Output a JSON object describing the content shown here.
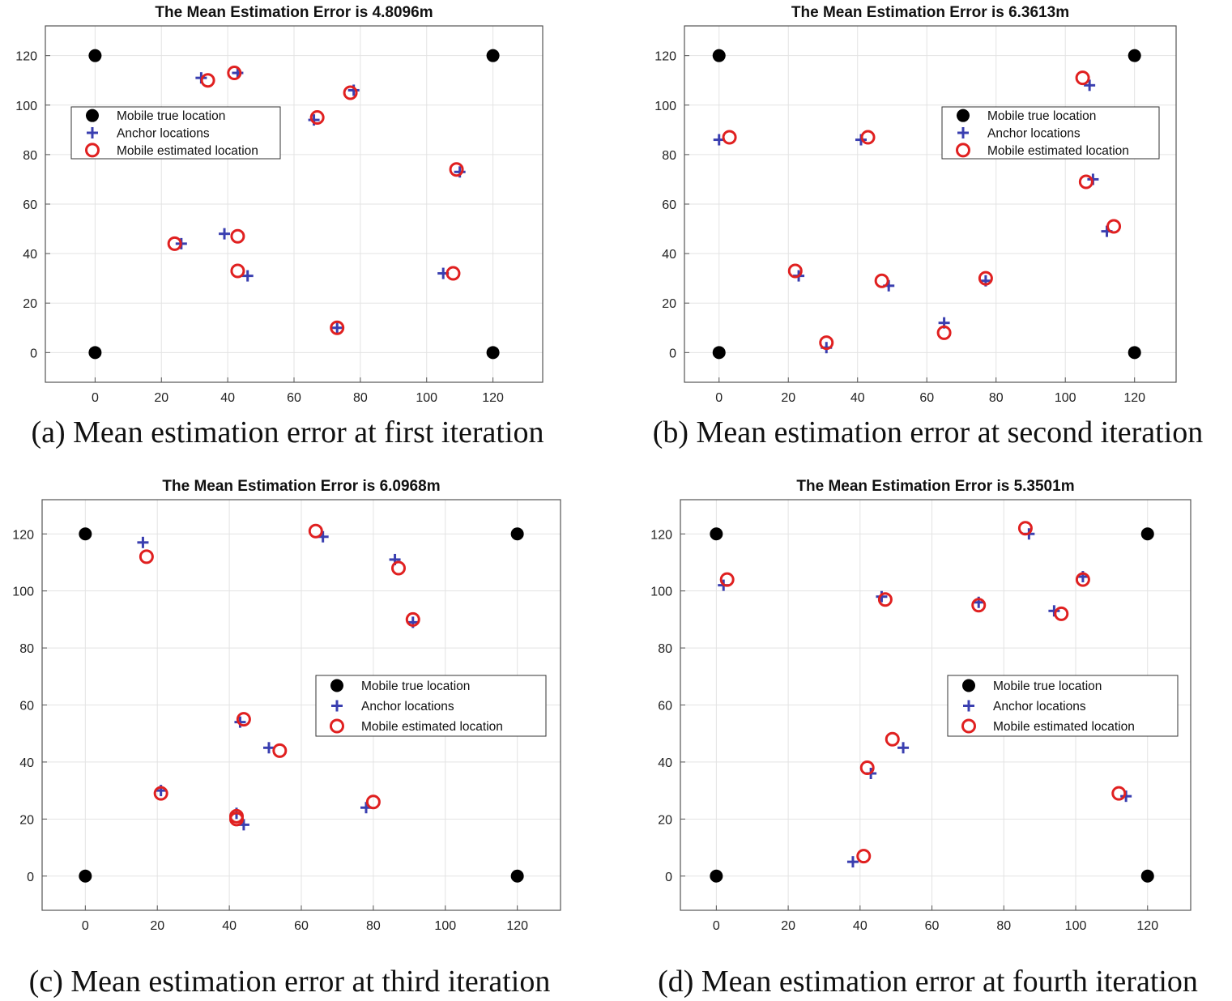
{
  "colors": {
    "mobile": "#000000",
    "anchor": "#3a3fb0",
    "estimated": "#e02020",
    "grid": "#e3e3e3",
    "axis": "#555555"
  },
  "legend_labels": {
    "mobile": "Mobile true location",
    "anchor": "Anchor locations",
    "estimated": "Mobile estimated location"
  },
  "chart_data": [
    {
      "type": "scatter",
      "title": "The Mean Estimation Error is 4.8096m",
      "caption": "(a) Mean estimation error at first iteration",
      "xlim": [
        -15,
        135
      ],
      "ylim": [
        -12,
        132
      ],
      "xticks": [
        0,
        20,
        40,
        60,
        80,
        100,
        120
      ],
      "yticks": [
        0,
        20,
        40,
        60,
        80,
        100,
        120
      ],
      "legend_position": "upper-left",
      "mobile_true": [
        [
          0,
          120
        ],
        [
          120,
          120
        ],
        [
          0,
          0
        ],
        [
          120,
          0
        ]
      ],
      "anchors": [
        [
          32,
          111
        ],
        [
          43,
          113
        ],
        [
          78,
          106
        ],
        [
          66,
          94
        ],
        [
          110,
          73
        ],
        [
          26,
          44
        ],
        [
          39,
          48
        ],
        [
          46,
          31
        ],
        [
          105,
          32
        ],
        [
          73,
          10
        ]
      ],
      "estimated": [
        [
          34,
          110
        ],
        [
          42,
          113
        ],
        [
          77,
          105
        ],
        [
          67,
          95
        ],
        [
          109,
          74
        ],
        [
          24,
          44
        ],
        [
          43,
          47
        ],
        [
          43,
          33
        ],
        [
          108,
          32
        ],
        [
          73,
          10
        ]
      ]
    },
    {
      "type": "scatter",
      "title": "The Mean Estimation Error is 6.3613m",
      "caption": "(b) Mean estimation error at second iteration",
      "xlim": [
        -10,
        132
      ],
      "ylim": [
        -12,
        132
      ],
      "xticks": [
        0,
        20,
        40,
        60,
        80,
        100,
        120
      ],
      "yticks": [
        0,
        20,
        40,
        60,
        80,
        100,
        120
      ],
      "legend_position": "upper-right",
      "mobile_true": [
        [
          0,
          120
        ],
        [
          120,
          120
        ],
        [
          0,
          0
        ],
        [
          120,
          0
        ]
      ],
      "anchors": [
        [
          0,
          86
        ],
        [
          41,
          86
        ],
        [
          107,
          108
        ],
        [
          108,
          70
        ],
        [
          112,
          49
        ],
        [
          23,
          31
        ],
        [
          49,
          27
        ],
        [
          77,
          29
        ],
        [
          65,
          12
        ],
        [
          31,
          2
        ]
      ],
      "estimated": [
        [
          3,
          87
        ],
        [
          43,
          87
        ],
        [
          105,
          111
        ],
        [
          106,
          69
        ],
        [
          114,
          51
        ],
        [
          22,
          33
        ],
        [
          47,
          29
        ],
        [
          77,
          30
        ],
        [
          65,
          8
        ],
        [
          31,
          4
        ]
      ]
    },
    {
      "type": "scatter",
      "title": "The Mean Estimation Error is 6.0968m",
      "caption": "(c) Mean estimation error at third iteration",
      "xlim": [
        -12,
        132
      ],
      "ylim": [
        -12,
        132
      ],
      "xticks": [
        0,
        20,
        40,
        60,
        80,
        100,
        120
      ],
      "yticks": [
        0,
        20,
        40,
        60,
        80,
        100,
        120
      ],
      "legend_position": "right",
      "mobile_true": [
        [
          0,
          120
        ],
        [
          120,
          120
        ],
        [
          0,
          0
        ],
        [
          120,
          0
        ]
      ],
      "anchors": [
        [
          16,
          117
        ],
        [
          66,
          119
        ],
        [
          86,
          111
        ],
        [
          91,
          89
        ],
        [
          43,
          54
        ],
        [
          51,
          45
        ],
        [
          21,
          30
        ],
        [
          42,
          22
        ],
        [
          44,
          18
        ],
        [
          78,
          24
        ]
      ],
      "estimated": [
        [
          17,
          112
        ],
        [
          64,
          121
        ],
        [
          87,
          108
        ],
        [
          91,
          90
        ],
        [
          44,
          55
        ],
        [
          54,
          44
        ],
        [
          21,
          29
        ],
        [
          42,
          20
        ],
        [
          42,
          21
        ],
        [
          80,
          26
        ]
      ]
    },
    {
      "type": "scatter",
      "title": "The Mean Estimation Error is 5.3501m",
      "caption": "(d) Mean estimation error at fourth iteration",
      "xlim": [
        -10,
        132
      ],
      "ylim": [
        -12,
        132
      ],
      "xticks": [
        0,
        20,
        40,
        60,
        80,
        100,
        120
      ],
      "yticks": [
        0,
        20,
        40,
        60,
        80,
        100,
        120
      ],
      "legend_position": "right",
      "mobile_true": [
        [
          0,
          120
        ],
        [
          120,
          120
        ],
        [
          0,
          0
        ],
        [
          120,
          0
        ]
      ],
      "anchors": [
        [
          87,
          120
        ],
        [
          2,
          102
        ],
        [
          46,
          98
        ],
        [
          73,
          96
        ],
        [
          102,
          105
        ],
        [
          94,
          93
        ],
        [
          52,
          45
        ],
        [
          43,
          36
        ],
        [
          38,
          5
        ],
        [
          114,
          28
        ]
      ],
      "estimated": [
        [
          86,
          122
        ],
        [
          3,
          104
        ],
        [
          47,
          97
        ],
        [
          73,
          95
        ],
        [
          102,
          104
        ],
        [
          96,
          92
        ],
        [
          49,
          48
        ],
        [
          42,
          38
        ],
        [
          41,
          7
        ],
        [
          112,
          29
        ]
      ]
    }
  ]
}
